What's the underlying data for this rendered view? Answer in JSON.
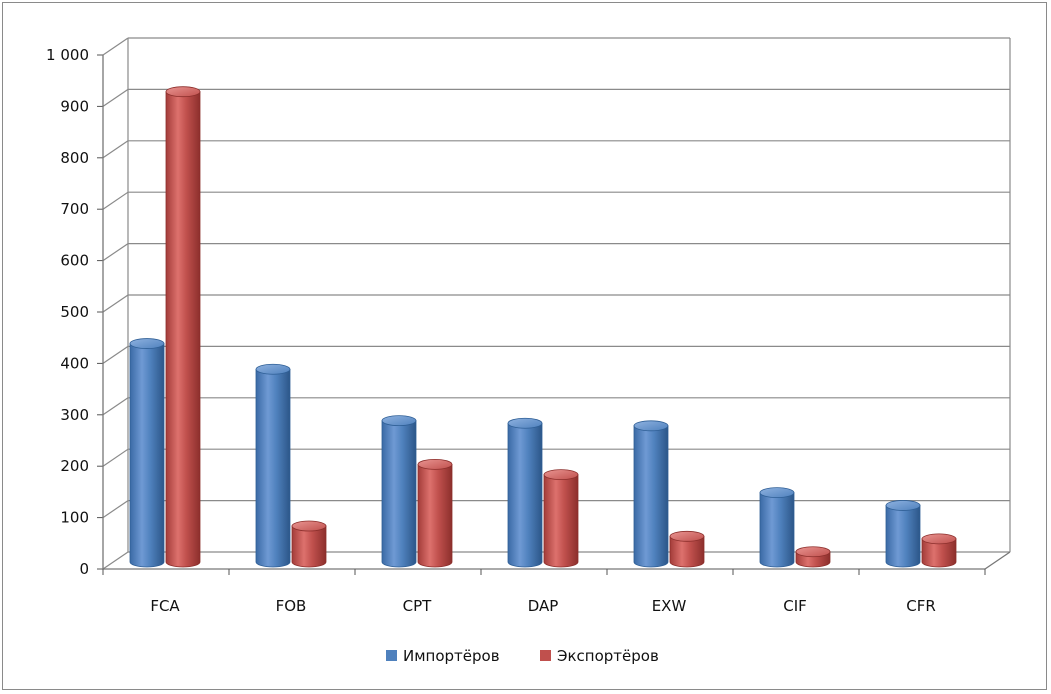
{
  "chart_data": {
    "type": "bar",
    "categories": [
      "FCA",
      "FOB",
      "CPT",
      "DAP",
      "EXW",
      "CIF",
      "CFR"
    ],
    "series": [
      {
        "name": "Импортёров",
        "color": "#4f81bd",
        "values": [
          425,
          375,
          275,
          270,
          265,
          135,
          110
        ]
      },
      {
        "name": "Экспортёров",
        "color": "#c0504d",
        "values": [
          915,
          70,
          190,
          170,
          50,
          20,
          45
        ]
      }
    ],
    "ylim": [
      0,
      1000
    ],
    "yticks": [
      0,
      100,
      200,
      300,
      400,
      500,
      600,
      700,
      800,
      900,
      1000
    ],
    "ytick_labels": [
      "0",
      "100",
      "200",
      "300",
      "400",
      "500",
      "600",
      "700",
      "800",
      "900",
      "1 000"
    ],
    "grid": true,
    "legend": "bottom",
    "title": "",
    "xlabel": "",
    "ylabel": ""
  }
}
